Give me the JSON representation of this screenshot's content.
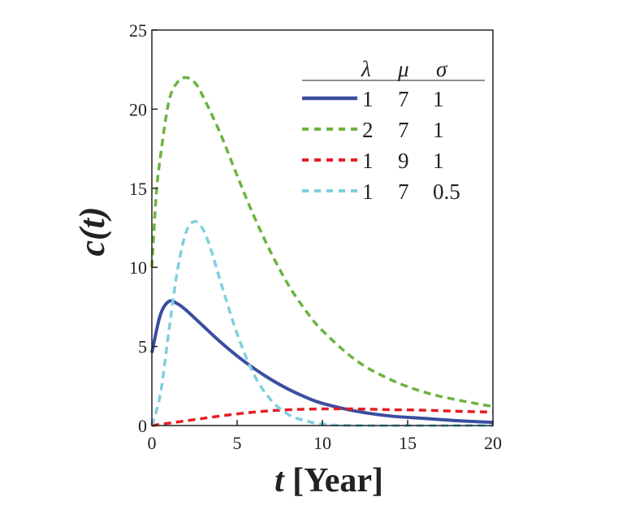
{
  "chart_data": {
    "type": "line",
    "xlabel_var": "t",
    "xlabel_unit": "[Year]",
    "ylabel": "c(t)",
    "xlim": [
      0,
      20
    ],
    "ylim": [
      0,
      25
    ],
    "xticks": [
      0,
      5,
      10,
      15,
      20
    ],
    "yticks": [
      0,
      5,
      10,
      15,
      20,
      25
    ],
    "legend": {
      "placement": "top-right",
      "headers": [
        "λ",
        "μ",
        "σ"
      ]
    },
    "series": [
      {
        "name": "λ=1, μ=7, σ=1",
        "lambda": "1",
        "mu": "7",
        "sigma": "1",
        "color": "#3a4ea0",
        "dash": "solid",
        "x": [
          0,
          0.5,
          1,
          1.5,
          2,
          3,
          4,
          5,
          6,
          7,
          8,
          9,
          10,
          12,
          14,
          16,
          18,
          20
        ],
        "y": [
          4.6,
          7.0,
          7.85,
          7.7,
          7.3,
          6.3,
          5.3,
          4.4,
          3.6,
          2.9,
          2.3,
          1.8,
          1.4,
          0.9,
          0.6,
          0.45,
          0.3,
          0.2
        ]
      },
      {
        "name": "λ=2, μ=7, σ=1",
        "lambda": "2",
        "mu": "7",
        "sigma": "1",
        "color": "#6db33f",
        "dash": "dashed",
        "x": [
          0,
          0.25,
          0.5,
          1,
          1.5,
          2,
          2.5,
          3,
          4,
          5,
          6,
          7,
          8,
          9,
          10,
          12,
          14,
          16,
          18,
          20
        ],
        "y": [
          10,
          14.5,
          17,
          20.5,
          21.7,
          22,
          21.7,
          20.8,
          18.5,
          15.8,
          13.2,
          10.9,
          8.9,
          7.3,
          6,
          4.1,
          2.9,
          2.1,
          1.6,
          1.2
        ]
      },
      {
        "name": "λ=1, μ=9, σ=1",
        "lambda": "1",
        "mu": "9",
        "sigma": "1",
        "color": "#e31e24",
        "dash": "dashed",
        "x": [
          0,
          2,
          4,
          6,
          8,
          10,
          12,
          14,
          16,
          18,
          20
        ],
        "y": [
          0,
          0.3,
          0.6,
          0.85,
          1.0,
          1.05,
          1.05,
          1.0,
          0.97,
          0.9,
          0.85
        ]
      },
      {
        "name": "λ=1, μ=7, σ=0.5",
        "lambda": "1",
        "mu": "7",
        "sigma": "0.5",
        "color": "#7fcfe0",
        "dash": "dashed",
        "x": [
          0,
          0.5,
          1,
          1.5,
          2,
          2.5,
          3,
          3.5,
          4,
          5,
          6,
          7,
          8,
          9,
          10,
          12,
          20
        ],
        "y": [
          0,
          2,
          6,
          9.8,
          12.2,
          12.9,
          12.4,
          11,
          9.2,
          5.8,
          3.2,
          1.6,
          0.7,
          0.3,
          0.1,
          0,
          0
        ]
      }
    ]
  }
}
